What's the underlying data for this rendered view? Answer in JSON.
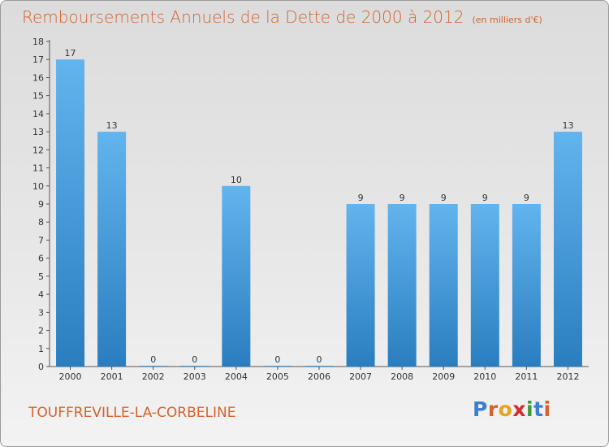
{
  "header": {
    "title": "Remboursements Annuels de la Dette de 2000 à 2012",
    "subtitle": "(en milliers d'€)"
  },
  "footer": {
    "commune": "TOUFFREVILLE-LA-CORBELINE",
    "logo_text": "Proxiti"
  },
  "colors": {
    "title": "#d4622c",
    "bar_top": "#62b4ee",
    "bar_bottom": "#2a7ebf",
    "logo_letters": [
      "#3a7fd0",
      "#d4622c",
      "#e8a21c",
      "#d42b2b",
      "#3a9a3a",
      "#3a7fd0",
      "#d4622c"
    ]
  },
  "chart_data": {
    "type": "bar",
    "title": "Remboursements Annuels de la Dette de 2000 à 2012",
    "subtitle": "(en milliers d'€)",
    "categories": [
      "2000",
      "2001",
      "2002",
      "2003",
      "2004",
      "2005",
      "2006",
      "2007",
      "2008",
      "2009",
      "2010",
      "2011",
      "2012"
    ],
    "values": [
      17,
      13,
      0,
      0,
      10,
      0,
      0,
      9,
      9,
      9,
      9,
      9,
      13
    ],
    "value_labels": [
      "17",
      "13",
      "0",
      "0",
      "10",
      "0",
      "0",
      "9",
      "9",
      "9",
      "9",
      "9",
      "13"
    ],
    "ylim": [
      0,
      18
    ],
    "y_ticks": [
      0,
      1,
      2,
      3,
      4,
      5,
      6,
      7,
      8,
      9,
      10,
      11,
      12,
      13,
      14,
      15,
      16,
      17,
      18
    ],
    "y_tick_labels": [
      "0",
      "1",
      "2",
      "3",
      "4",
      "5",
      "6",
      "7",
      "8",
      "9",
      "10",
      "11",
      "12",
      "13",
      "14",
      "15",
      "16",
      "17",
      "18"
    ],
    "grid": false,
    "legend": "none"
  }
}
